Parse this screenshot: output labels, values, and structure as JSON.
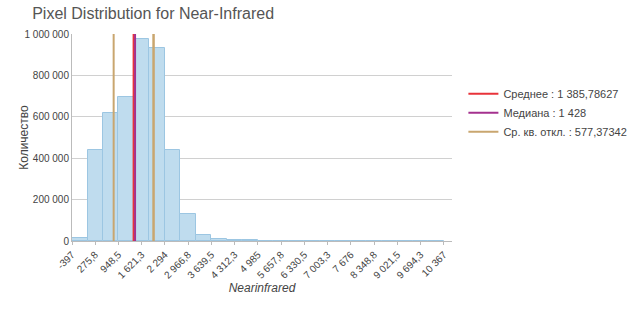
{
  "chart_data": {
    "type": "histogram",
    "title": "Pixel Distribution for Near-Infrared",
    "x_label": "Nearinfrared",
    "y_label": "Количество",
    "bins": [
      -397,
      51.5,
      500,
      948.5,
      1397,
      1845.5,
      2294,
      2742.5,
      3191,
      3639.5,
      4088,
      4536.5,
      4985,
      5433.5,
      5882,
      6330.5,
      6779,
      7227.5,
      7676,
      8124.5,
      8573,
      9021.5,
      9470,
      9918.5,
      10367
    ],
    "values": [
      15000,
      440000,
      620000,
      695000,
      975000,
      930000,
      440000,
      130000,
      30000,
      10000,
      5000,
      3000,
      2000,
      1500,
      1000,
      800,
      600,
      500,
      400,
      300,
      300,
      200,
      200,
      100
    ],
    "color": "#bfdcee",
    "xlim": [
      -397,
      10600
    ],
    "xticks": [
      -397,
      {
        "value": 275.8,
        "label": "275,8"
      },
      {
        "value": 948.5,
        "label": "948,5"
      },
      {
        "value": 1621.3,
        "label": "1 621,3"
      },
      {
        "value": 2294,
        "label": "2 294"
      },
      {
        "value": 2966.8,
        "label": "2 966,8"
      },
      {
        "value": 3639.5,
        "label": "3 639,5"
      },
      {
        "value": 4312.3,
        "label": "4 312,3"
      },
      {
        "value": 4985,
        "label": "4 985"
      },
      {
        "value": 5657.8,
        "label": "5 657,8"
      },
      {
        "value": 6330.5,
        "label": "6 330,5"
      },
      {
        "value": 7003.3,
        "label": "7 003,3"
      },
      {
        "value": 7676,
        "label": "7 676"
      },
      {
        "value": 8348.8,
        "label": "8 348,8"
      },
      {
        "value": 9021.5,
        "label": "9 021,5"
      },
      {
        "value": 9694.3,
        "label": "9 694,3"
      },
      {
        "value": 10367,
        "label": "10 367"
      }
    ],
    "ylim": [
      0,
      1000000
    ],
    "yticks": [
      0,
      {
        "value": 200000,
        "label": "200 000"
      },
      {
        "value": 400000,
        "label": "400 000"
      },
      {
        "value": 600000,
        "label": "600 000"
      },
      {
        "value": 800000,
        "label": "800 000"
      },
      {
        "value": 1000000,
        "label": "1 000 000"
      }
    ],
    "grid": true,
    "legend": "right",
    "statistics": {
      "mean": {
        "name": "Среднее : 1 385,78627",
        "value": 1385.78627,
        "color": "#e8333a"
      },
      "median": {
        "name": "Медиана : 1 428",
        "value": 1428,
        "color": "#a4318e"
      },
      "std": {
        "name": "Ср. кв. откл. : 577,37342",
        "value": 577.37342,
        "color": "#c9a66f"
      }
    }
  }
}
